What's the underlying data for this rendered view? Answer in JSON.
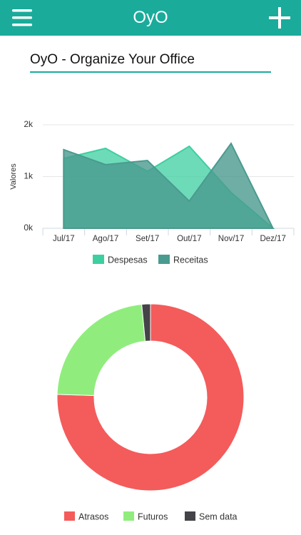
{
  "app_bar": {
    "title": "OyO"
  },
  "office_name": "OyO - Organize Your Office",
  "chart_data": [
    {
      "type": "area",
      "y_label": "Valores",
      "categories": [
        "Jul/17",
        "Ago/17",
        "Set/17",
        "Out/17",
        "Nov/17",
        "Dez/17"
      ],
      "series": [
        {
          "name": "Despesas",
          "color": "#3ecfa0",
          "values": [
            1350,
            1545,
            1100,
            1585,
            690,
            0
          ]
        },
        {
          "name": "Receitas",
          "color": "#4a9a8f",
          "values": [
            1520,
            1230,
            1310,
            525,
            1640,
            0
          ]
        }
      ],
      "ylim": [
        0,
        2000
      ],
      "yticks": [
        {
          "value": 0,
          "label": "0k"
        },
        {
          "value": 1000,
          "label": "1k"
        },
        {
          "value": 2000,
          "label": "2k"
        }
      ],
      "grid": true,
      "legend": "bottom"
    },
    {
      "type": "donut",
      "categories": [
        "Atrasos",
        "Futuros",
        "Sem data"
      ],
      "colors": [
        "#f45b5b",
        "#90ed7d",
        "#434348"
      ],
      "values": [
        75.5,
        23,
        1.5
      ],
      "legend": "bottom"
    }
  ]
}
